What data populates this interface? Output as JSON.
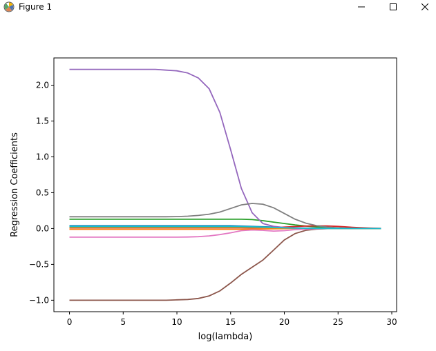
{
  "window": {
    "title": "Figure 1",
    "icons": {
      "app": "matplotlib-icon",
      "minimize": "minimize-icon",
      "maximize": "maximize-icon",
      "close": "close-icon"
    }
  },
  "chart_data": {
    "type": "line",
    "title": "",
    "xlabel": "log(lambda)",
    "ylabel": "Regression Coefficients",
    "xlim": [
      -1.45,
      30.45
    ],
    "ylim": [
      -1.16,
      2.38
    ],
    "xticks": [
      0,
      5,
      10,
      15,
      20,
      25,
      30
    ],
    "xtick_labels": [
      "0",
      "5",
      "10",
      "15",
      "20",
      "25",
      "30"
    ],
    "yticks": [
      -1.0,
      -0.5,
      0.0,
      0.5,
      1.0,
      1.5,
      2.0
    ],
    "ytick_labels": [
      "−1.0",
      "−0.5",
      "0.0",
      "0.5",
      "1.0",
      "1.5",
      "2.0"
    ],
    "grid": false,
    "legend": false,
    "x": [
      0,
      1,
      2,
      3,
      4,
      5,
      6,
      7,
      8,
      9,
      10,
      11,
      12,
      13,
      14,
      15,
      16,
      17,
      18,
      19,
      20,
      21,
      22,
      23,
      24,
      25,
      26,
      27,
      28,
      29
    ],
    "series": [
      {
        "color": "#1f77b4",
        "values": [
          0.04,
          0.04,
          0.04,
          0.04,
          0.04,
          0.04,
          0.04,
          0.04,
          0.04,
          0.04,
          0.04,
          0.04,
          0.04,
          0.04,
          0.04,
          0.04,
          0.035,
          0.03,
          0.025,
          0.02,
          0.015,
          0.01,
          0.005,
          0.002,
          0.001,
          0.0,
          0.0,
          0.0,
          0.0,
          0.0
        ]
      },
      {
        "color": "#ff7f0e",
        "values": [
          -0.01,
          -0.01,
          -0.01,
          -0.01,
          -0.01,
          -0.01,
          -0.01,
          -0.01,
          -0.01,
          -0.01,
          -0.01,
          -0.01,
          -0.01,
          -0.01,
          -0.01,
          -0.01,
          -0.01,
          -0.008,
          -0.006,
          -0.004,
          -0.002,
          0.0,
          0.0,
          0.0,
          0.0,
          0.0,
          0.0,
          0.0,
          0.0,
          0.0
        ]
      },
      {
        "color": "#2ca02c",
        "values": [
          0.13,
          0.13,
          0.13,
          0.13,
          0.13,
          0.13,
          0.13,
          0.13,
          0.13,
          0.13,
          0.13,
          0.13,
          0.13,
          0.13,
          0.13,
          0.13,
          0.13,
          0.125,
          0.11,
          0.09,
          0.07,
          0.05,
          0.035,
          0.022,
          0.014,
          0.008,
          0.004,
          0.002,
          0.001,
          0.0
        ]
      },
      {
        "color": "#d62728",
        "values": [
          0.01,
          0.01,
          0.01,
          0.01,
          0.01,
          0.01,
          0.01,
          0.01,
          0.01,
          0.01,
          0.01,
          0.01,
          0.01,
          0.01,
          0.01,
          0.01,
          0.01,
          0.01,
          0.012,
          0.015,
          0.02,
          0.028,
          0.035,
          0.038,
          0.036,
          0.03,
          0.02,
          0.012,
          0.006,
          0.002
        ]
      },
      {
        "color": "#9467bd",
        "values": [
          2.22,
          2.22,
          2.22,
          2.22,
          2.22,
          2.22,
          2.22,
          2.22,
          2.22,
          2.21,
          2.2,
          2.17,
          2.1,
          1.95,
          1.62,
          1.1,
          0.56,
          0.22,
          0.07,
          0.03,
          0.015,
          0.01,
          0.008,
          0.006,
          0.004,
          0.002,
          0.001,
          0.0,
          0.0,
          0.0
        ]
      },
      {
        "color": "#8c564b",
        "values": [
          -1.0,
          -1.0,
          -1.0,
          -1.0,
          -1.0,
          -1.0,
          -1.0,
          -1.0,
          -1.0,
          -1.0,
          -0.995,
          -0.99,
          -0.975,
          -0.94,
          -0.87,
          -0.76,
          -0.64,
          -0.54,
          -0.44,
          -0.3,
          -0.16,
          -0.07,
          -0.025,
          -0.008,
          -0.002,
          0.0,
          0.0,
          0.0,
          0.0,
          0.0
        ]
      },
      {
        "color": "#e377c2",
        "values": [
          -0.12,
          -0.12,
          -0.12,
          -0.12,
          -0.12,
          -0.12,
          -0.12,
          -0.12,
          -0.12,
          -0.12,
          -0.12,
          -0.118,
          -0.113,
          -0.103,
          -0.085,
          -0.06,
          -0.03,
          -0.02,
          -0.025,
          -0.035,
          -0.03,
          -0.015,
          -0.008,
          -0.004,
          -0.002,
          -0.001,
          0.0,
          0.0,
          0.0,
          0.0
        ]
      },
      {
        "color": "#7f7f7f",
        "values": [
          0.165,
          0.165,
          0.165,
          0.165,
          0.165,
          0.165,
          0.165,
          0.165,
          0.165,
          0.165,
          0.167,
          0.172,
          0.183,
          0.2,
          0.23,
          0.28,
          0.33,
          0.35,
          0.34,
          0.29,
          0.21,
          0.13,
          0.075,
          0.04,
          0.02,
          0.01,
          0.005,
          0.002,
          0.001,
          0.0
        ]
      },
      {
        "color": "#bcbd22",
        "values": [
          0.02,
          0.02,
          0.02,
          0.02,
          0.02,
          0.02,
          0.02,
          0.02,
          0.02,
          0.02,
          0.02,
          0.02,
          0.02,
          0.02,
          0.02,
          0.02,
          0.02,
          0.018,
          0.015,
          0.012,
          0.008,
          0.005,
          0.003,
          0.002,
          0.001,
          0.0,
          0.0,
          0.0,
          0.0,
          0.0
        ]
      },
      {
        "color": "#17becf",
        "values": [
          0.03,
          0.03,
          0.03,
          0.03,
          0.03,
          0.03,
          0.03,
          0.03,
          0.03,
          0.03,
          0.03,
          0.03,
          0.03,
          0.03,
          0.03,
          0.03,
          0.028,
          0.024,
          0.02,
          0.015,
          0.01,
          0.006,
          0.003,
          0.002,
          0.001,
          0.0,
          0.0,
          0.0,
          0.0,
          0.0
        ]
      }
    ]
  }
}
